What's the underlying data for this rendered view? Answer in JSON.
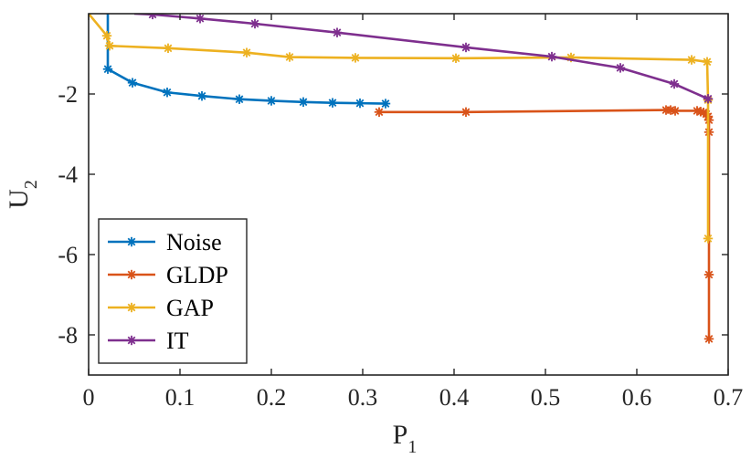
{
  "chart_data": {
    "type": "line",
    "title": "",
    "xlabel": "P",
    "xlabel_sub": "1",
    "ylabel": "U",
    "ylabel_sub": "2",
    "xlim": [
      0,
      0.7
    ],
    "ylim": [
      -9,
      0
    ],
    "xticks": [
      0,
      0.1,
      0.2,
      0.3,
      0.4,
      0.5,
      0.6,
      0.7
    ],
    "xtick_labels": [
      "0",
      "0.1",
      "0.2",
      "0.3",
      "0.4",
      "0.5",
      "0.6",
      "0.7"
    ],
    "yticks": [
      -2,
      -4,
      -6,
      -8
    ],
    "ytick_labels": [
      "-2",
      "-4",
      "-6",
      "-8"
    ],
    "grid": false,
    "legend_position": "bottom-left",
    "series": [
      {
        "name": "Noise",
        "color": "#0072BD",
        "marker_indices": [
          1,
          2,
          3,
          4,
          5,
          6,
          7,
          8,
          9,
          10
        ],
        "points": [
          [
            0.021,
            0.0
          ],
          [
            0.021,
            -1.38
          ],
          [
            0.048,
            -1.72
          ],
          [
            0.086,
            -1.96
          ],
          [
            0.124,
            -2.05
          ],
          [
            0.165,
            -2.13
          ],
          [
            0.2,
            -2.17
          ],
          [
            0.235,
            -2.2
          ],
          [
            0.267,
            -2.22
          ],
          [
            0.297,
            -2.23
          ],
          [
            0.325,
            -2.24
          ]
        ]
      },
      {
        "name": "GLDP",
        "color": "#D95319",
        "marker_indices": [
          0,
          1,
          2,
          3,
          4,
          5,
          6,
          7,
          8,
          9,
          10,
          11,
          12,
          13
        ],
        "points": [
          [
            0.318,
            -2.45
          ],
          [
            0.413,
            -2.45
          ],
          [
            0.632,
            -2.4
          ],
          [
            0.637,
            -2.4
          ],
          [
            0.642,
            -2.42
          ],
          [
            0.666,
            -2.42
          ],
          [
            0.67,
            -2.44
          ],
          [
            0.673,
            -2.46
          ],
          [
            0.676,
            -2.5
          ],
          [
            0.678,
            -2.56
          ],
          [
            0.679,
            -2.65
          ],
          [
            0.679,
            -2.95
          ],
          [
            0.679,
            -6.5
          ],
          [
            0.679,
            -8.1
          ]
        ]
      },
      {
        "name": "GAP",
        "color": "#EDB120",
        "marker_indices": [
          1,
          2,
          3,
          4,
          5,
          6,
          7,
          8,
          9,
          10,
          11,
          12
        ],
        "points": [
          [
            0.0,
            0.0
          ],
          [
            0.02,
            -0.55
          ],
          [
            0.023,
            -0.8
          ],
          [
            0.087,
            -0.86
          ],
          [
            0.173,
            -0.97
          ],
          [
            0.22,
            -1.08
          ],
          [
            0.292,
            -1.1
          ],
          [
            0.402,
            -1.11
          ],
          [
            0.528,
            -1.09
          ],
          [
            0.66,
            -1.15
          ],
          [
            0.677,
            -1.2
          ],
          [
            0.678,
            -2.15
          ],
          [
            0.678,
            -5.6
          ]
        ]
      },
      {
        "name": "IT",
        "color": "#7E2F8E",
        "marker_indices": [
          1,
          2,
          3,
          4,
          5,
          6,
          7,
          8,
          9
        ],
        "points": [
          [
            0.05,
            0.0
          ],
          [
            0.07,
            -0.02
          ],
          [
            0.122,
            -0.12
          ],
          [
            0.182,
            -0.25
          ],
          [
            0.272,
            -0.47
          ],
          [
            0.413,
            -0.84
          ],
          [
            0.507,
            -1.07
          ],
          [
            0.582,
            -1.35
          ],
          [
            0.641,
            -1.75
          ],
          [
            0.678,
            -2.12
          ]
        ]
      }
    ]
  }
}
